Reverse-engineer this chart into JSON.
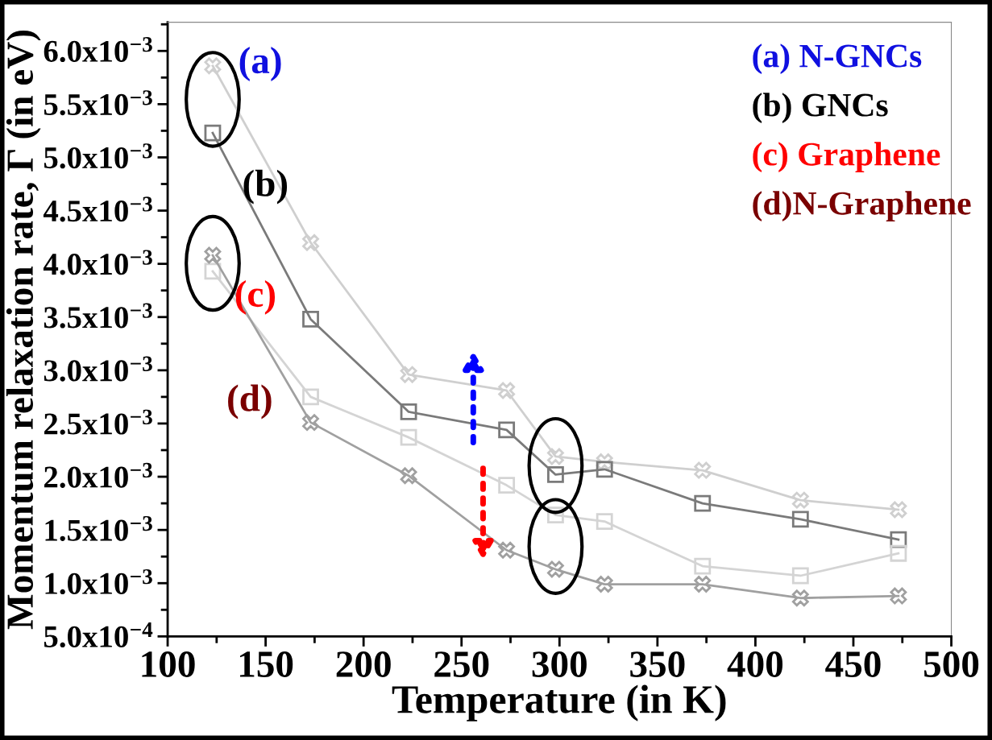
{
  "chart_data": {
    "type": "line",
    "xlabel": "Temperature (in K)",
    "ylabel": "Momentum relaxation rate, Γ (in eV)",
    "x": [
      123,
      173,
      223,
      273,
      298,
      323,
      373,
      423,
      473
    ],
    "series": [
      {
        "color": "#cfcfcf",
        "marker": "cross",
        "values": [
          0.00586,
          0.0042,
          0.00296,
          0.00281,
          0.00219,
          0.00214,
          0.00206,
          0.00178,
          0.00169
        ]
      },
      {
        "color": "#7a7a7a",
        "marker": "square",
        "values": [
          0.00523,
          0.00348,
          0.00261,
          0.00244,
          0.00202,
          0.00207,
          0.00175,
          0.0016,
          0.00141
        ]
      },
      {
        "color": "#d4d4d4",
        "marker": "square",
        "values": [
          0.00393,
          0.00275,
          0.00237,
          0.00192,
          0.00164,
          0.00158,
          0.00116,
          0.00107,
          0.00128
        ]
      },
      {
        "color": "#a0a0a0",
        "marker": "cross",
        "values": [
          0.00408,
          0.00251,
          0.00201,
          0.00131,
          0.00113,
          0.00099,
          0.00099,
          0.00086,
          0.00088
        ]
      }
    ],
    "xlim": [
      100,
      500
    ],
    "xticks": [
      100,
      150,
      200,
      250,
      300,
      350,
      400,
      450,
      500
    ],
    "ylim": [
      0.0005,
      0.00627
    ],
    "yticks": [
      {
        "value": 0.0005,
        "label": "5.0x10$^{−4}$"
      },
      {
        "value": 0.001,
        "label": "1.0x10$^{−3}$"
      },
      {
        "value": 0.0015,
        "label": "1.5x10$^{−3}$"
      },
      {
        "value": 0.002,
        "label": "2.0x10$^{−3}$"
      },
      {
        "value": 0.0025,
        "label": "2.5x10$^{−3}$"
      },
      {
        "value": 0.003,
        "label": "3.0x10$^{−3}$"
      },
      {
        "value": 0.0035,
        "label": "3.5x10$^{−3}$"
      },
      {
        "value": 0.004,
        "label": "4.0x10$^{−3}$"
      },
      {
        "value": 0.0045,
        "label": "4.5x10$^{−3}$"
      },
      {
        "value": 0.005,
        "label": "5.0x10$^{−3}$"
      },
      {
        "value": 0.0055,
        "label": "5.5x10$^{−3}$"
      },
      {
        "value": 0.006,
        "label": "6.0x10$^{−3}$"
      }
    ],
    "annotations": [
      "(a) N-GNCs",
      "(b) GNCs",
      "(c) Graphene",
      "(d)N-Graphene",
      "(a)",
      "(b)",
      "(c)",
      "(d)"
    ],
    "grid": false,
    "line_style": "solid"
  }
}
